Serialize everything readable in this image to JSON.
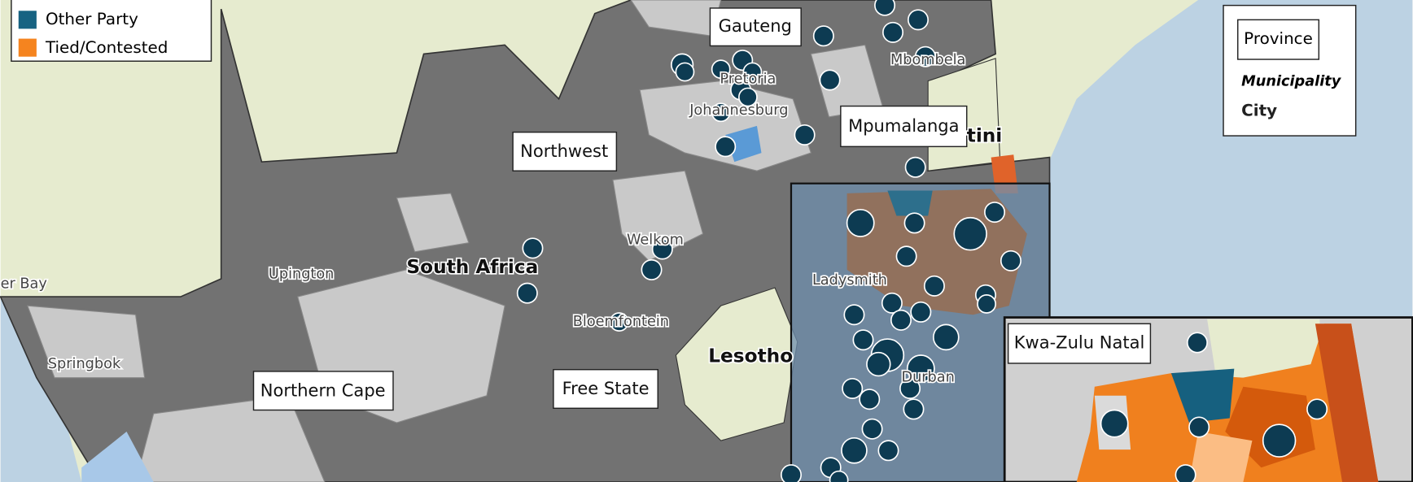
{
  "legend": {
    "items": [
      "Other Party",
      "Tied/Contested"
    ]
  },
  "provinces": [
    "Gauteng",
    "Mpumalanga",
    "Northwest",
    "Northern Cape",
    "Free State",
    "Kwa-Zulu Natal"
  ],
  "cities": [
    "Pretoria",
    "Johannesburg",
    "Mbombela",
    "Welkom",
    "Upington",
    "Bloemfontein",
    "Springbok",
    "er Bay",
    "Ladysmith",
    "Durban"
  ],
  "countries": [
    "South Africa",
    "Lesotho",
    "tini"
  ],
  "key": {
    "province": "Province",
    "municipality": "Municipality",
    "city": "City"
  }
}
